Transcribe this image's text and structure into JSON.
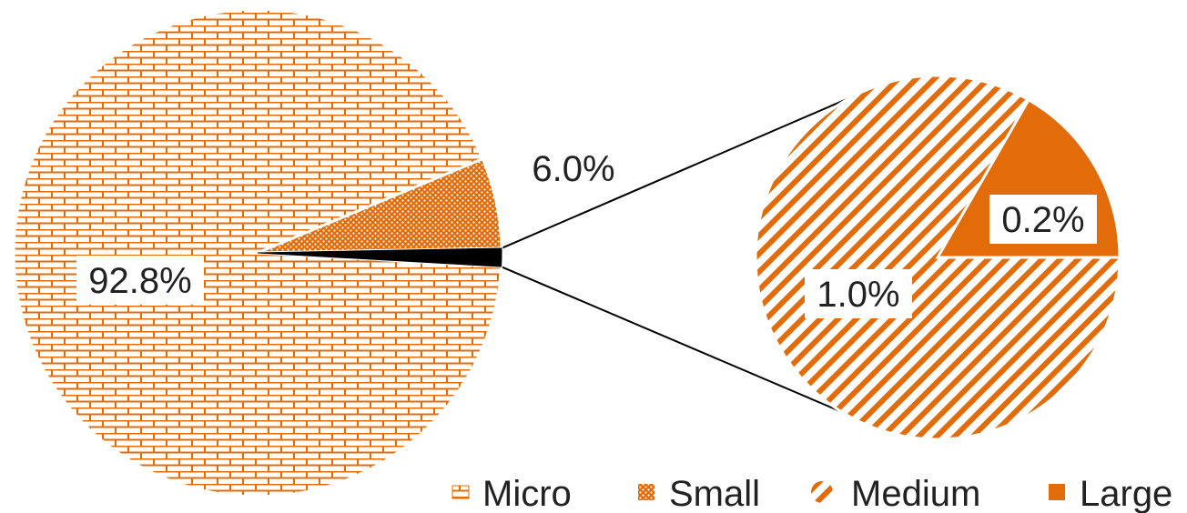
{
  "chart_data": {
    "type": "pie",
    "subtype": "bar-of-pie (pie-of-pie)",
    "categories": [
      "Micro",
      "Small",
      "Medium",
      "Large"
    ],
    "values": [
      92.8,
      6.0,
      1.0,
      0.2
    ],
    "value_labels": [
      "92.8%",
      "6.0%",
      "1.0%",
      "0.2%"
    ],
    "secondary_pie": {
      "categories": [
        "Medium",
        "Large"
      ],
      "values": [
        1.0,
        0.2
      ]
    },
    "legend": {
      "placement": "bottom-right",
      "entries": [
        "Micro",
        "Small",
        "Medium",
        "Large"
      ]
    },
    "colors": {
      "accent": "#e36c0a",
      "connector": "#000000",
      "label_bg": "#ffffff"
    },
    "patterns": {
      "Micro": "brick",
      "Small": "dotted",
      "Medium": "diagonal-stripes",
      "Large": "solid"
    }
  }
}
